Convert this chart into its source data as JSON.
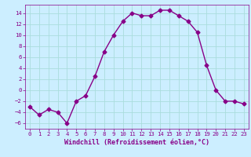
{
  "x": [
    0,
    1,
    2,
    3,
    4,
    5,
    6,
    7,
    8,
    9,
    10,
    11,
    12,
    13,
    14,
    15,
    16,
    17,
    18,
    19,
    20,
    21,
    22,
    23
  ],
  "y": [
    -3,
    -4.5,
    -3.5,
    -4,
    -6,
    -2,
    -1,
    2.5,
    7,
    10,
    12.5,
    14,
    13.5,
    13.5,
    14.5,
    14.5,
    13.5,
    12.5,
    10.5,
    4.5,
    0,
    -2,
    -2,
    -2.5
  ],
  "line_color": "#880088",
  "marker": "D",
  "marker_size": 2.5,
  "bg_color": "#cceeff",
  "grid_color": "#aadddd",
  "xlabel": "Windchill (Refroidissement éolien,°C)",
  "xlabel_color": "#880088",
  "xlim": [
    -0.5,
    23.5
  ],
  "ylim": [
    -7,
    15.5
  ],
  "yticks": [
    -6,
    -4,
    -2,
    0,
    2,
    4,
    6,
    8,
    10,
    12,
    14
  ],
  "xticks": [
    0,
    1,
    2,
    3,
    4,
    5,
    6,
    7,
    8,
    9,
    10,
    11,
    12,
    13,
    14,
    15,
    16,
    17,
    18,
    19,
    20,
    21,
    22,
    23
  ],
  "tick_fontsize": 5.2,
  "xlabel_fontsize": 6.0,
  "line_width": 1.0
}
